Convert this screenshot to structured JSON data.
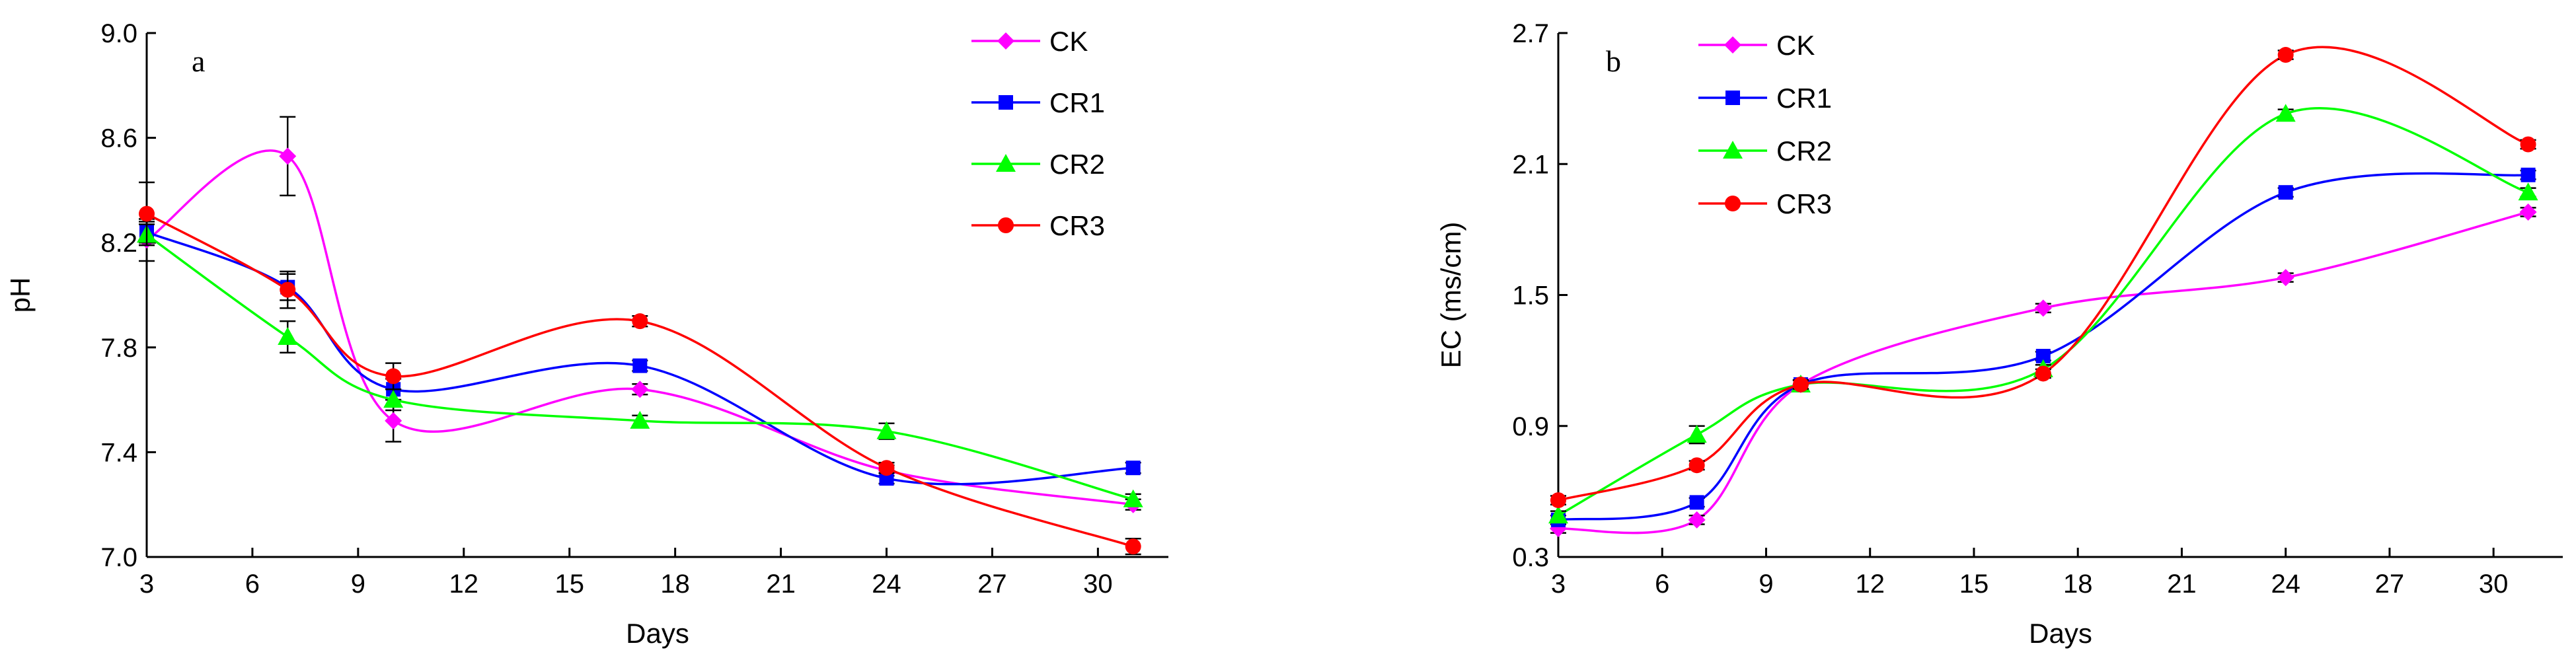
{
  "chart_data": [
    {
      "type": "line",
      "panel_label": "a",
      "xlabel": "Days",
      "ylabel": "pH",
      "xlim": [
        3,
        32
      ],
      "ylim": [
        7.0,
        9.0
      ],
      "xticks": [
        3,
        6,
        9,
        12,
        15,
        18,
        21,
        24,
        27,
        30
      ],
      "xtick_labels": [
        "3",
        "6",
        "9",
        "12",
        "15",
        "18",
        "21",
        "24",
        "27",
        "30"
      ],
      "yticks": [
        7.0,
        7.4,
        7.8,
        8.2,
        8.6,
        9.0
      ],
      "ytick_labels": [
        "7.0",
        "7.4",
        "7.8",
        "8.2",
        "8.6",
        "9.0"
      ],
      "x": [
        3,
        7,
        10,
        17,
        24,
        31
      ],
      "series": [
        {
          "name": "CK",
          "color": "#ff00ff",
          "marker": "diamond",
          "values": [
            8.21,
            8.53,
            7.52,
            7.64,
            7.33,
            7.2
          ],
          "errors": [
            0.08,
            0.15,
            0.08,
            0.02,
            0.02,
            0.02
          ]
        },
        {
          "name": "CR1",
          "color": "#0000ff",
          "marker": "square",
          "values": [
            8.24,
            8.03,
            7.64,
            7.73,
            7.3,
            7.34
          ],
          "errors": [
            0.04,
            0.05,
            0.04,
            0.02,
            0.02,
            0.02
          ]
        },
        {
          "name": "CR2",
          "color": "#00ff00",
          "marker": "triangle",
          "values": [
            8.23,
            7.84,
            7.6,
            7.52,
            7.48,
            7.22
          ],
          "errors": [
            0.04,
            0.06,
            0.04,
            0.02,
            0.03,
            0.02
          ]
        },
        {
          "name": "CR3",
          "color": "#ff0000",
          "marker": "circle",
          "values": [
            8.31,
            8.02,
            7.69,
            7.9,
            7.34,
            7.04
          ],
          "errors": [
            0.12,
            0.07,
            0.05,
            0.02,
            0.02,
            0.03
          ]
        }
      ]
    },
    {
      "type": "line",
      "panel_label": "b",
      "xlabel": "Days",
      "ylabel": "EC (ms/cm)",
      "xlim": [
        3,
        32
      ],
      "ylim": [
        0.3,
        2.7
      ],
      "xticks": [
        3,
        6,
        9,
        12,
        15,
        18,
        21,
        24,
        27,
        30
      ],
      "xtick_labels": [
        "3",
        "6",
        "9",
        "12",
        "15",
        "18",
        "21",
        "24",
        "27",
        "30"
      ],
      "yticks": [
        0.3,
        0.9,
        1.5,
        2.1,
        2.7
      ],
      "ytick_labels": [
        "0.3",
        "0.9",
        "1.5",
        "2.1",
        "2.7"
      ],
      "x": [
        3,
        7,
        10,
        17,
        24,
        31
      ],
      "series": [
        {
          "name": "CK",
          "color": "#ff00ff",
          "marker": "diamond",
          "values": [
            0.43,
            0.47,
            1.09,
            1.44,
            1.58,
            1.88
          ],
          "errors": [
            0.02,
            0.02,
            0.02,
            0.02,
            0.02,
            0.02
          ]
        },
        {
          "name": "CR1",
          "color": "#0000ff",
          "marker": "square",
          "values": [
            0.47,
            0.55,
            1.09,
            1.22,
            1.97,
            2.05
          ],
          "errors": [
            0.02,
            0.02,
            0.02,
            0.02,
            0.02,
            0.02
          ]
        },
        {
          "name": "CR2",
          "color": "#00ff00",
          "marker": "triangle",
          "values": [
            0.49,
            0.86,
            1.09,
            1.16,
            2.33,
            1.97
          ],
          "errors": [
            0.02,
            0.04,
            0.02,
            0.02,
            0.02,
            0.02
          ]
        },
        {
          "name": "CR3",
          "color": "#ff0000",
          "marker": "circle",
          "values": [
            0.56,
            0.72,
            1.09,
            1.14,
            2.6,
            2.19
          ],
          "errors": [
            0.02,
            0.02,
            0.02,
            0.02,
            0.02,
            0.02
          ]
        }
      ]
    }
  ]
}
